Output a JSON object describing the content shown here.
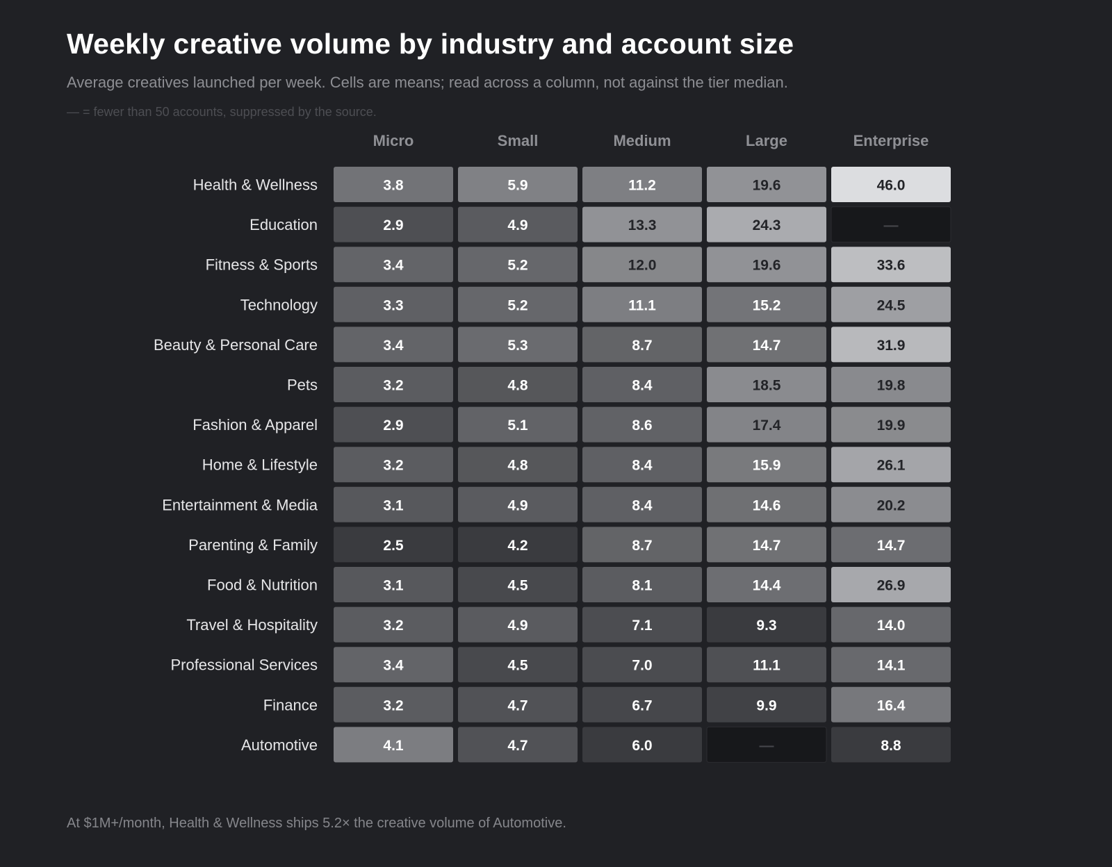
{
  "header": {
    "title": "Weekly creative volume by industry and account size",
    "subtitle": "Average creatives launched per week. Cells are means; read across a column, not against the tier median.",
    "note": "— = fewer than 50 accounts, suppressed by the source."
  },
  "footer": {
    "text": "At $1M+/month, Health & Wellness ships 5.2× the creative volume of Automotive."
  },
  "colors": {
    "background": "#202125",
    "missing_cell": "#17181b",
    "low": "#3a3b3f",
    "high": "#dcdde0"
  },
  "chart_data": {
    "type": "heatmap",
    "title": "Weekly creative volume by industry and account size",
    "columns": [
      "Micro",
      "Small",
      "Medium",
      "Large",
      "Enterprise"
    ],
    "rows": [
      "Health & Wellness",
      "Education",
      "Fitness & Sports",
      "Technology",
      "Beauty & Personal Care",
      "Pets",
      "Fashion & Apparel",
      "Home & Lifestyle",
      "Entertainment & Media",
      "Parenting & Family",
      "Food & Nutrition",
      "Travel & Hospitality",
      "Professional Services",
      "Finance",
      "Automotive"
    ],
    "values": [
      [
        3.8,
        5.9,
        11.2,
        19.6,
        46.0
      ],
      [
        2.9,
        4.9,
        13.3,
        24.3,
        null
      ],
      [
        3.4,
        5.2,
        12.0,
        19.6,
        33.6
      ],
      [
        3.3,
        5.2,
        11.1,
        15.2,
        24.5
      ],
      [
        3.4,
        5.3,
        8.7,
        14.7,
        31.9
      ],
      [
        3.2,
        4.8,
        8.4,
        18.5,
        19.8
      ],
      [
        2.9,
        5.1,
        8.6,
        17.4,
        19.9
      ],
      [
        3.2,
        4.8,
        8.4,
        15.9,
        26.1
      ],
      [
        3.1,
        4.9,
        8.4,
        14.6,
        20.2
      ],
      [
        2.5,
        4.2,
        8.7,
        14.7,
        14.7
      ],
      [
        3.1,
        4.5,
        8.1,
        14.4,
        26.9
      ],
      [
        3.2,
        4.9,
        7.1,
        9.3,
        14.0
      ],
      [
        3.4,
        4.5,
        7.0,
        11.1,
        14.1
      ],
      [
        3.2,
        4.7,
        6.7,
        9.9,
        16.4
      ],
      [
        4.1,
        4.7,
        6.0,
        null,
        8.8
      ]
    ],
    "missing_symbol": "—",
    "legend": "none"
  }
}
